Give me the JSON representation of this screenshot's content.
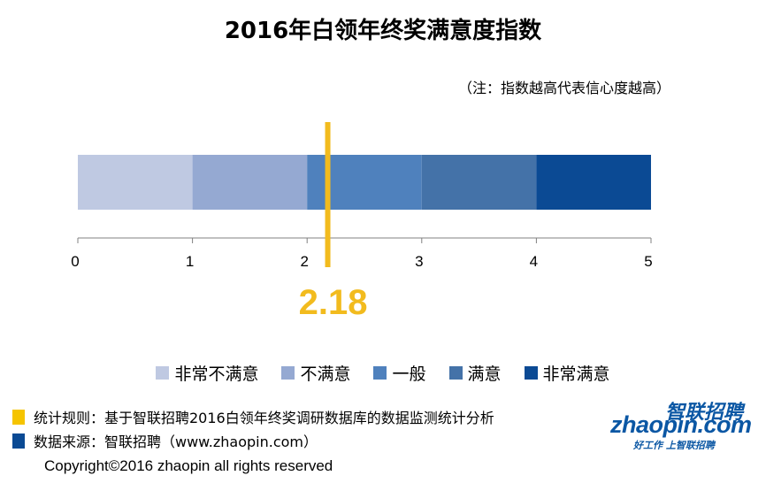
{
  "chart_data": {
    "type": "bar",
    "title": "2016年白领年终奖满意度指数",
    "note": "（注：指数越高代表信心度越高）",
    "xlim": [
      0,
      5
    ],
    "ticks": [
      "0",
      "1",
      "2",
      "3",
      "4",
      "5"
    ],
    "segments": [
      {
        "name": "非常不满意",
        "start": 0,
        "end": 1,
        "color": "#bfc9e2"
      },
      {
        "name": "不满意",
        "start": 1,
        "end": 2,
        "color": "#95a9d2"
      },
      {
        "name": "一般",
        "start": 2,
        "end": 3,
        "color": "#4f81bd"
      },
      {
        "name": "满意",
        "start": 3,
        "end": 4,
        "color": "#4472a8"
      },
      {
        "name": "非常满意",
        "start": 4,
        "end": 5,
        "color": "#0b4a94"
      }
    ],
    "marker": {
      "value": 2.18,
      "label": "2.18",
      "color": "#f2bb1e"
    },
    "legend_position": "bottom"
  },
  "footer": {
    "rule_text": "统计规则：基于智联招聘2016白领年终奖调研数据库的数据监测统计分析",
    "rule_color": "#f5c400",
    "source_text": "数据来源：智联招聘（www.zhaopin.com）",
    "source_color": "#0b4a94",
    "copyright": "Copyright©2016 zhaopin all rights reserved"
  },
  "logo": {
    "cn": "智联招聘",
    "en": "zhaopin.com",
    "slogan": "好工作 上智联招聘"
  }
}
